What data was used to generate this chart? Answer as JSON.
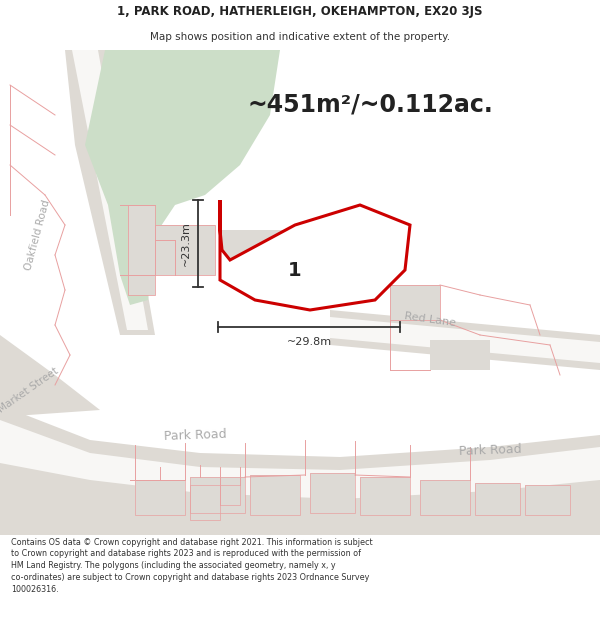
{
  "title_line1": "1, PARK ROAD, HATHERLEIGH, OKEHAMPTON, EX20 3JS",
  "title_line2": "Map shows position and indicative extent of the property.",
  "area_text": "~451m²/~0.112ac.",
  "label_number": "1",
  "dim_vertical": "~23.3m",
  "dim_horizontal": "~29.8m",
  "footer_text_lines": [
    "Contains OS data © Crown copyright and database right 2021. This information is subject",
    "to Crown copyright and database rights 2023 and is reproduced with the permission of",
    "HM Land Registry. The polygons (including the associated geometry, namely x, y",
    "co-ordinates) are subject to Crown copyright and database rights 2023 Ordnance Survey",
    "100026316."
  ],
  "map_bg": "#f7f6f4",
  "property_fill": "#ffffff",
  "property_edge": "#cc0000",
  "green_fill": "#ccdec8",
  "building_fill": "#dddad5",
  "street_label_color": "#aaaaaa",
  "dim_color": "#333333",
  "boundary_color": "#e8a0a0",
  "road_grey": "#dedad4"
}
